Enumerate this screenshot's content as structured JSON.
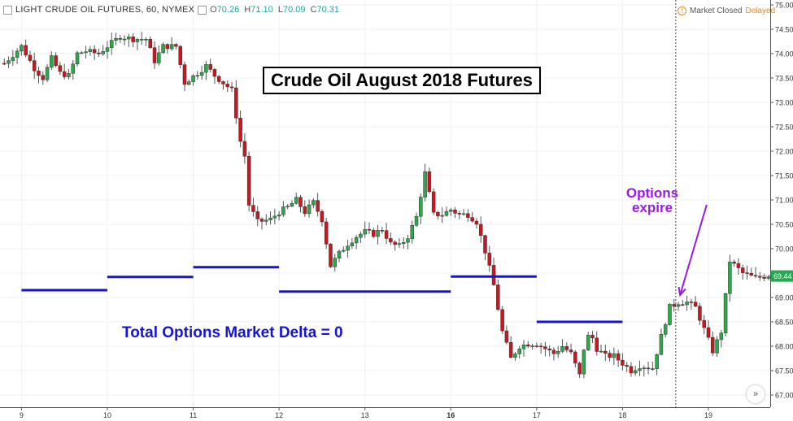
{
  "header": {
    "symbol": "LIGHT CRUDE OIL FUTURES, 60, NYMEX",
    "ohlc": [
      {
        "label": "O",
        "value": "70.26"
      },
      {
        "label": "H",
        "value": "71.10"
      },
      {
        "label": "L",
        "value": "70.09"
      },
      {
        "label": "C",
        "value": "70.31"
      }
    ]
  },
  "status": {
    "market": "Market Closed",
    "delayed": "Delayed"
  },
  "annotations": {
    "title": "Crude Oil August 2018 Futures",
    "delta": "Total Options Market Delta = 0",
    "expire_line1": "Options",
    "expire_line2": "expire"
  },
  "last_price_label": "69.44",
  "go_button": "»",
  "colors": {
    "up": "#2ea84a",
    "down": "#c8171f",
    "delta_line": "#1414d8",
    "arrow": "#9b19e6",
    "last_price": "#26a650"
  },
  "chart_data": {
    "type": "candlestick",
    "title": "Crude Oil August 2018 Futures",
    "ylim": [
      66.75,
      75.1
    ],
    "y_ticks": [
      "67.00",
      "67.50",
      "68.00",
      "68.50",
      "69.00",
      "69.50",
      "70.00",
      "70.50",
      "71.00",
      "71.50",
      "72.00",
      "72.50",
      "73.00",
      "73.50",
      "74.00",
      "74.50",
      "75.00"
    ],
    "x_ticks": [
      "9",
      "10",
      "11",
      "12",
      "13",
      "16",
      "17",
      "18",
      "19"
    ],
    "x_range": [
      -0.25,
      8.72
    ],
    "options_expiry_x": 7.62,
    "last_price": 69.44,
    "delta_zero_levels": [
      {
        "from": 0,
        "to": 1,
        "price": 69.15
      },
      {
        "from": 1,
        "to": 2,
        "price": 69.42
      },
      {
        "from": 2,
        "to": 3,
        "price": 69.62
      },
      {
        "from": 3,
        "to": 5,
        "price": 69.12
      },
      {
        "from": 5,
        "to": 6,
        "price": 69.43
      },
      {
        "from": 6,
        "to": 7,
        "price": 68.5
      }
    ],
    "anchors": [
      [
        -0.2,
        73.8
      ],
      [
        0.0,
        74.15
      ],
      [
        0.15,
        73.7
      ],
      [
        0.25,
        73.5
      ],
      [
        0.35,
        73.9
      ],
      [
        0.45,
        73.6
      ],
      [
        0.55,
        73.55
      ],
      [
        0.65,
        74.0
      ],
      [
        0.75,
        74.05
      ],
      [
        0.9,
        74.0
      ],
      [
        1.0,
        74.15
      ],
      [
        1.15,
        74.35
      ],
      [
        1.3,
        74.3
      ],
      [
        1.45,
        74.3
      ],
      [
        1.55,
        73.85
      ],
      [
        1.65,
        74.15
      ],
      [
        1.8,
        74.15
      ],
      [
        1.9,
        73.4
      ],
      [
        2.05,
        73.6
      ],
      [
        2.15,
        73.75
      ],
      [
        2.25,
        73.55
      ],
      [
        2.35,
        73.4
      ],
      [
        2.45,
        73.25
      ],
      [
        2.55,
        72.2
      ],
      [
        2.6,
        71.9
      ],
      [
        2.65,
        70.9
      ],
      [
        2.75,
        70.55
      ],
      [
        2.9,
        70.6
      ],
      [
        3.0,
        70.75
      ],
      [
        3.1,
        70.85
      ],
      [
        3.2,
        71.0
      ],
      [
        3.3,
        70.75
      ],
      [
        3.4,
        70.95
      ],
      [
        3.5,
        70.6
      ],
      [
        3.6,
        69.65
      ],
      [
        3.7,
        69.9
      ],
      [
        3.8,
        70.1
      ],
      [
        3.9,
        70.25
      ],
      [
        4.0,
        70.35
      ],
      [
        4.1,
        70.3
      ],
      [
        4.2,
        70.4
      ],
      [
        4.3,
        70.1
      ],
      [
        4.4,
        70.05
      ],
      [
        4.5,
        70.25
      ],
      [
        4.6,
        70.65
      ],
      [
        4.7,
        71.55
      ],
      [
        4.8,
        70.7
      ],
      [
        4.9,
        70.7
      ],
      [
        5.0,
        70.8
      ],
      [
        5.1,
        70.7
      ],
      [
        5.2,
        70.7
      ],
      [
        5.3,
        70.55
      ],
      [
        5.4,
        69.95
      ],
      [
        5.5,
        69.25
      ],
      [
        5.6,
        68.3
      ],
      [
        5.7,
        67.75
      ],
      [
        5.8,
        68.0
      ],
      [
        5.9,
        68.05
      ],
      [
        6.0,
        68.05
      ],
      [
        6.1,
        67.95
      ],
      [
        6.2,
        67.85
      ],
      [
        6.3,
        68.0
      ],
      [
        6.4,
        67.85
      ],
      [
        6.5,
        67.4
      ],
      [
        6.55,
        67.95
      ],
      [
        6.62,
        68.3
      ],
      [
        6.7,
        67.95
      ],
      [
        6.8,
        67.8
      ],
      [
        6.9,
        67.8
      ],
      [
        7.0,
        67.65
      ],
      [
        7.1,
        67.5
      ],
      [
        7.2,
        67.6
      ],
      [
        7.35,
        67.55
      ],
      [
        7.45,
        68.2
      ],
      [
        7.55,
        68.8
      ],
      [
        7.65,
        68.9
      ],
      [
        7.75,
        68.9
      ],
      [
        7.85,
        68.8
      ],
      [
        7.95,
        68.35
      ],
      [
        8.05,
        67.9
      ],
      [
        8.15,
        68.3
      ],
      [
        8.25,
        69.75
      ],
      [
        8.4,
        69.5
      ],
      [
        8.55,
        69.4
      ],
      [
        8.7,
        69.45
      ]
    ]
  }
}
